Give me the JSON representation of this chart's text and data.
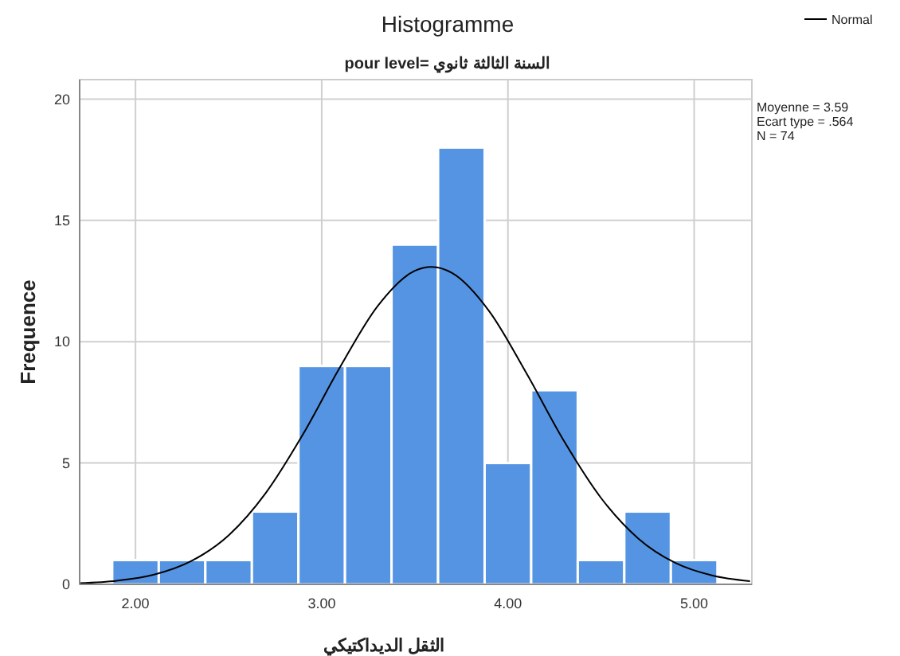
{
  "chart_data": {
    "type": "histogram",
    "title": "Histogramme",
    "subtitle": "pour level= السنة الثالثة ثانوي",
    "xlabel": "الثقل الديداكتيكي",
    "ylabel": "Frequence",
    "bins": [
      1.875,
      2.125,
      2.375,
      2.625,
      2.875,
      3.125,
      3.375,
      3.625,
      3.875,
      4.125,
      4.375,
      4.625,
      4.875,
      5.125
    ],
    "series": [
      {
        "color": "#5594e2",
        "values": [
          1,
          1,
          1,
          3,
          9,
          9,
          14,
          18,
          5,
          8,
          1,
          3,
          1
        ]
      },
      {
        "type": "line",
        "name": "Normal",
        "color": "#000000",
        "x": [
          1.7,
          1.9,
          2.1,
          2.3,
          2.5,
          2.7,
          2.9,
          3.1,
          3.3,
          3.5,
          3.59,
          3.7,
          3.9,
          4.1,
          4.3,
          4.5,
          4.7,
          4.9,
          5.1,
          5.3
        ],
        "values": [
          0.05,
          0.15,
          0.4,
          0.96,
          2.02,
          3.77,
          6.19,
          8.97,
          11.46,
          12.92,
          13.08,
          12.83,
          11.25,
          8.69,
          5.92,
          3.56,
          1.89,
          0.88,
          0.36,
          0.13
        ]
      }
    ],
    "annotations": [
      "Moyenne = 3.59",
      "Ecart type = .564",
      "N = 74"
    ],
    "xlim": [
      1.7,
      5.31
    ],
    "xticks": [
      {
        "value": 2,
        "label": "2.00"
      },
      {
        "value": 3,
        "label": "3.00"
      },
      {
        "value": 4,
        "label": "4.00"
      },
      {
        "value": 5,
        "label": "5.00"
      }
    ],
    "ylim": [
      0,
      20.8
    ],
    "yticks": [
      0,
      5,
      10,
      15,
      20
    ],
    "grid": true,
    "legend": "top right",
    "line_style": "solid",
    "marker": "none"
  }
}
